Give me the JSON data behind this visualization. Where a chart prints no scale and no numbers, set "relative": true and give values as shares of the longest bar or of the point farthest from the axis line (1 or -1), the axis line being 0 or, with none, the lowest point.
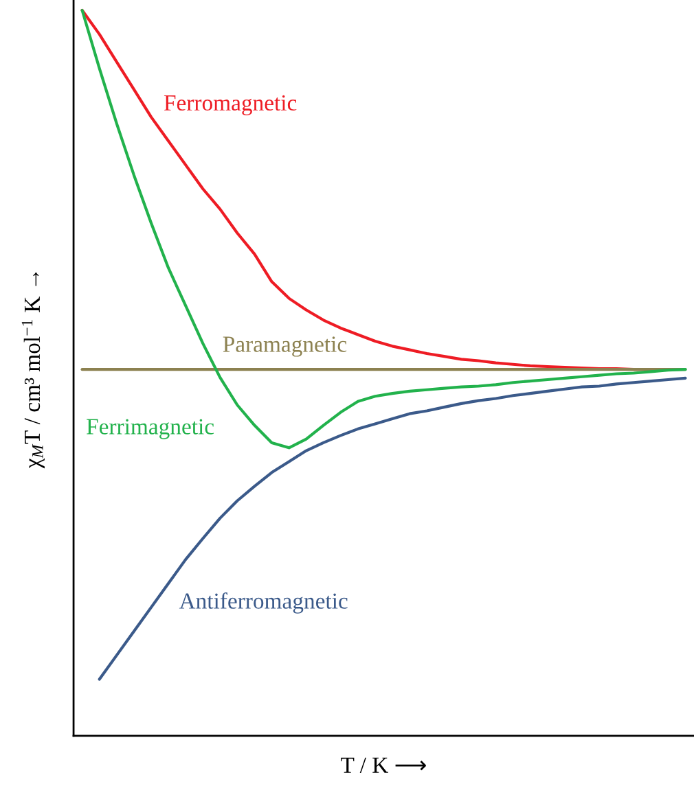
{
  "chart_data": {
    "type": "line",
    "relative": true,
    "xlabel": "T / K ⟶",
    "ylabel": "χ$_{M}$T / cm³ mol$^{−1}$ K →",
    "categories": [
      null,
      null,
      null,
      null,
      null,
      null,
      null,
      null,
      null,
      null,
      null,
      null,
      null,
      null,
      null,
      null,
      null,
      null,
      null,
      null,
      null,
      null,
      null,
      null,
      null,
      null,
      null,
      null,
      null,
      null,
      null,
      null,
      null,
      null,
      null,
      null
    ],
    "legend": false,
    "marker": "none",
    "line_style": "solid",
    "series": [
      {
        "name": "Ferromagnetic",
        "color": "#ee1c24",
        "values": [
          1.0,
          0.967,
          0.929,
          0.891,
          0.853,
          0.82,
          0.787,
          0.754,
          0.726,
          0.693,
          0.664,
          0.626,
          0.603,
          0.587,
          0.573,
          0.562,
          0.553,
          0.544,
          0.537,
          0.532,
          0.527,
          0.523,
          0.519,
          0.517,
          0.514,
          0.512,
          0.51,
          0.509,
          0.508,
          0.507,
          0.506,
          0.506,
          0.505,
          0.505,
          null,
          null
        ]
      },
      {
        "name": "Paramagnetic",
        "color": "#8c8150",
        "values": [
          0.505,
          0.505,
          0.505,
          0.505,
          0.505,
          0.505,
          0.505,
          0.505,
          0.505,
          0.505,
          0.505,
          0.505,
          0.505,
          0.505,
          0.505,
          0.505,
          0.505,
          0.505,
          0.505,
          0.505,
          0.505,
          0.505,
          0.505,
          0.505,
          0.505,
          0.505,
          0.505,
          0.505,
          0.505,
          0.505,
          0.505,
          0.505,
          0.505,
          0.505,
          0.505,
          0.505
        ]
      },
      {
        "name": "Ferrimagnetic",
        "color": "#22b24c",
        "values": [
          1.0,
          0.92,
          0.844,
          0.773,
          0.707,
          0.645,
          0.593,
          0.541,
          0.494,
          0.456,
          0.428,
          0.404,
          0.397,
          0.409,
          0.428,
          0.446,
          0.461,
          0.468,
          0.472,
          0.475,
          0.477,
          0.479,
          0.481,
          0.482,
          0.484,
          0.487,
          0.489,
          0.491,
          0.493,
          0.495,
          0.497,
          0.499,
          0.5,
          0.502,
          0.504,
          0.505
        ]
      },
      {
        "name": "Antiferromagnetic",
        "color": "#3b5a8a",
        "values": [
          null,
          0.078,
          0.111,
          0.144,
          0.177,
          0.21,
          0.243,
          0.272,
          0.3,
          0.324,
          0.344,
          0.363,
          0.378,
          0.393,
          0.404,
          0.414,
          0.423,
          0.43,
          0.437,
          0.444,
          0.448,
          0.453,
          0.458,
          0.462,
          0.465,
          0.469,
          0.472,
          0.475,
          0.478,
          0.481,
          0.482,
          0.485,
          0.487,
          0.489,
          0.491,
          0.493
        ]
      }
    ]
  }
}
